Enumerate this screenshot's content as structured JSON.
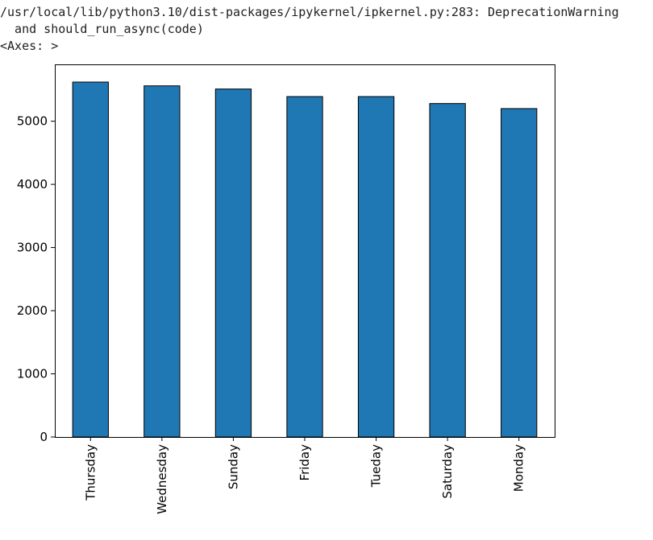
{
  "output": {
    "warning_line_1": "/usr/local/lib/python3.10/dist-packages/ipykernel/ipkernel.py:283: DeprecationWarning",
    "warning_line_2": "  and should_run_async(code)",
    "axes_repr": "<Axes: >"
  },
  "chart_data": {
    "type": "bar",
    "categories": [
      "Thursday",
      "Wednesday",
      "Sunday",
      "Friday",
      "Tueday",
      "Saturday",
      "Monday"
    ],
    "values": [
      5620,
      5560,
      5510,
      5390,
      5390,
      5280,
      5200
    ],
    "title": "",
    "xlabel": "",
    "ylabel": "",
    "ylim": [
      0,
      5900
    ],
    "yticks": [
      0,
      1000,
      2000,
      3000,
      4000,
      5000
    ],
    "grid": false,
    "bar_color": "#1f77b4",
    "edge_color": "#000000"
  }
}
